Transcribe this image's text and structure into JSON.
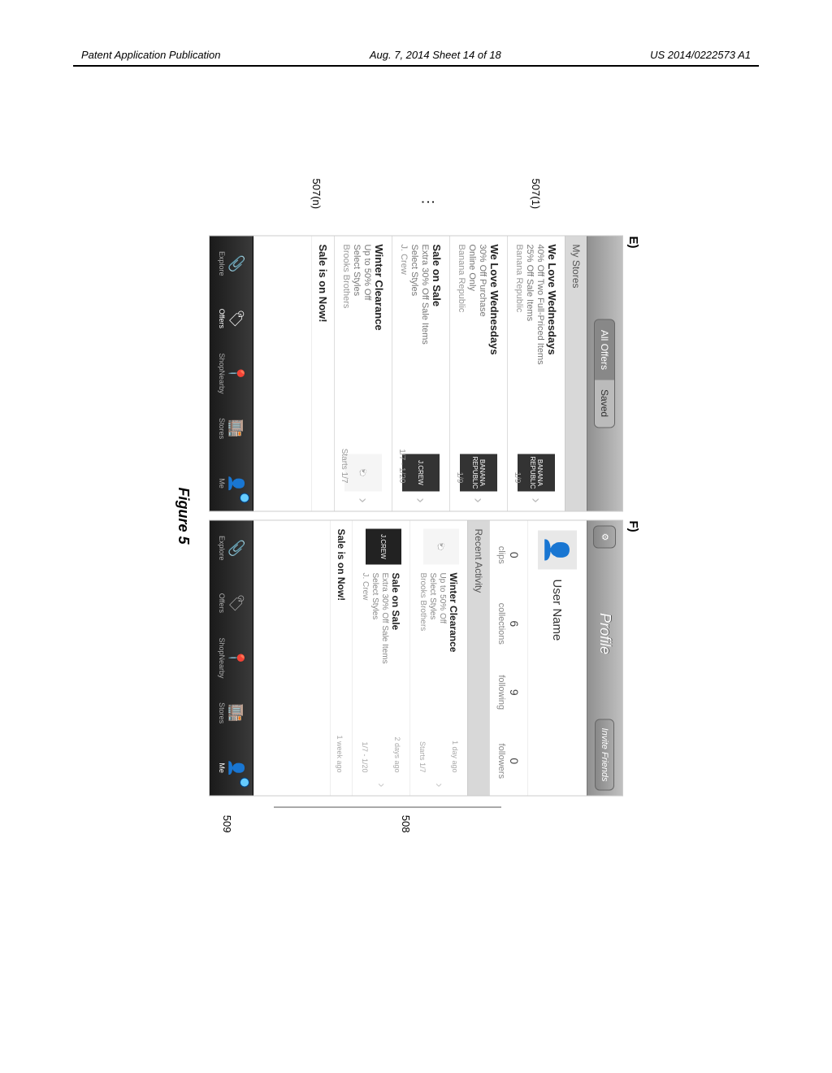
{
  "header": {
    "left": "Patent Application Publication",
    "center": "Aug. 7, 2014  Sheet 14 of 18",
    "right": "US 2014/0222573 A1"
  },
  "caption": "Figure 5",
  "refs": {
    "r507_1": "507(1)",
    "r507_n": "507(n)",
    "r508": "508",
    "r509": "509",
    "dots": "⋮"
  },
  "panelE": {
    "label": "E)",
    "seg": {
      "left": "All Offers",
      "right": "Saved"
    },
    "section": "My Stores",
    "offers": [
      {
        "title": "We Love Wednesdays",
        "l1": "40% Off Two Full-Priced Items",
        "l2": "25% Off Sale Items",
        "store": "Banana Republic",
        "date": "1/9",
        "thumb": "BANANA\nREPUBLIC",
        "thumbClass": ""
      },
      {
        "title": "We Love Wednesdays",
        "l1": "30% Off Purchase",
        "l2": "Online Only",
        "store": "Banana Republic",
        "date": "1/9",
        "thumb": "BANANA\nREPUBLIC",
        "thumbClass": ""
      },
      {
        "title": "Sale on Sale",
        "l1": "Extra 30% Off Sale Items",
        "l2": "Select Styles",
        "store": "J. Crew",
        "date": "1/7 - 1/20",
        "thumb": "J.CREW",
        "thumbClass": ""
      },
      {
        "title": "Winter Clearance",
        "l1": "Up to 50% Off",
        "l2": "Select Styles",
        "store": "Brooks Brothers",
        "date": "Starts 1/7",
        "thumb": "🐑",
        "thumbClass": "light"
      }
    ],
    "cutoff": "Sale is on Now!"
  },
  "panelF": {
    "label": "F)",
    "title": "Profile",
    "gear": "⚙",
    "invite": "Invite Friends",
    "username": "User Name",
    "stats": [
      {
        "n": "0",
        "l": "clips"
      },
      {
        "n": "6",
        "l": "collections"
      },
      {
        "n": "9",
        "l": "following"
      },
      {
        "n": "0",
        "l": "followers"
      }
    ],
    "section": "Recent Activity",
    "activity": [
      {
        "title": "Winter Clearance",
        "l1": "Up to 50% Off",
        "l2": "Select Styles",
        "store": "Brooks Brothers",
        "time": "1 day ago",
        "date": "Starts 1/7",
        "thumb": "🐑",
        "thumbClass": "light"
      },
      {
        "title": "Sale on Sale",
        "l1": "Extra 30% Off Sale Items",
        "l2": "Select Styles",
        "store": "J. Crew",
        "time": "2 days ago",
        "date": "1/7 - 1/20",
        "thumb": "J.CREW",
        "thumbClass": ""
      }
    ],
    "cutoff_title": "Sale is on Now!",
    "cutoff_time": "1 week ago"
  },
  "tabbar": {
    "items": [
      {
        "icon": "📎",
        "label": "Explore"
      },
      {
        "icon": "🏷",
        "label": "Offers"
      },
      {
        "icon": "📍",
        "label": "ShopNearby"
      },
      {
        "icon": "🏬",
        "label": "Stores"
      },
      {
        "icon": "👤",
        "label": "Me"
      }
    ]
  },
  "colors": {
    "topbar_grad_a": "#c0c0c0",
    "topbar_grad_b": "#909090",
    "tabbar_grad_a": "#3a3a3a",
    "tabbar_grad_b": "#1a1a1a",
    "section_bg": "#d8d8d8"
  }
}
